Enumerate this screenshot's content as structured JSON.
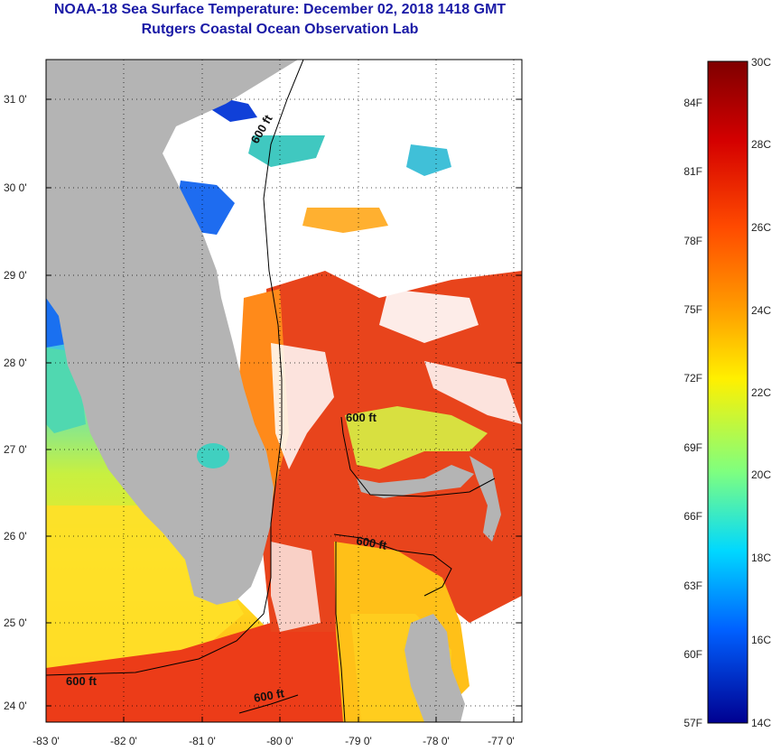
{
  "header": {
    "title": "NOAA-18 Sea Surface Temperature:  December 02, 2018 1418 GMT",
    "subtitle": "Rutgers Coastal Ocean Observation Lab"
  },
  "map": {
    "y_ticks": [
      "31 0'",
      "30 0'",
      "29 0'",
      "28 0'",
      "27 0'",
      "26 0'",
      "25 0'",
      "24 0'"
    ],
    "x_ticks": [
      "-83 0'",
      "-82 0'",
      "-81 0'",
      "-80 0'",
      "-79 0'",
      "-78 0'",
      "-77 0'"
    ],
    "contour_labels": [
      "600 ft",
      "600 ft",
      "600 ft",
      "600 ft",
      "600 ft"
    ]
  },
  "colorbar": {
    "celsius": [
      "30C",
      "28C",
      "26C",
      "24C",
      "22C",
      "20C",
      "18C",
      "16C",
      "14C"
    ],
    "fahrenheit": [
      "84F",
      "81F",
      "78F",
      "75F",
      "72F",
      "69F",
      "66F",
      "63F",
      "60F",
      "57F"
    ]
  },
  "colors": {
    "title": "#1a1aa6",
    "land": "#b4b4b4",
    "warm": "#e8401c",
    "cool": "#f0e020"
  }
}
